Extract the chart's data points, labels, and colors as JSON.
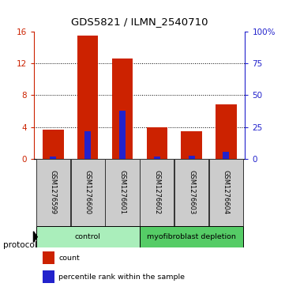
{
  "title": "GDS5821 / ILMN_2540710",
  "samples": [
    "GSM1276599",
    "GSM1276600",
    "GSM1276601",
    "GSM1276602",
    "GSM1276603",
    "GSM1276604"
  ],
  "count_values": [
    3.7,
    15.5,
    12.6,
    4.0,
    3.5,
    6.8
  ],
  "percentile_values": [
    0.25,
    3.5,
    6.0,
    0.25,
    0.4,
    0.9
  ],
  "ylim_left": [
    0,
    16
  ],
  "ylim_right": [
    0,
    100
  ],
  "yticks_left": [
    0,
    4,
    8,
    12,
    16
  ],
  "yticks_right": [
    0,
    25,
    50,
    75,
    100
  ],
  "yticklabels_right": [
    "0",
    "25",
    "50",
    "75",
    "100%"
  ],
  "bar_color": "#cc2200",
  "percentile_color": "#2222cc",
  "groups": [
    {
      "label": "control",
      "indices": [
        0,
        1,
        2
      ],
      "color": "#aaeebb"
    },
    {
      "label": "myofibroblast depletion",
      "indices": [
        3,
        4,
        5
      ],
      "color": "#55cc66"
    }
  ],
  "protocol_label": "protocol",
  "legend_items": [
    {
      "label": "count",
      "color": "#cc2200"
    },
    {
      "label": "percentile rank within the sample",
      "color": "#2222cc"
    }
  ],
  "grid_yticks": [
    4,
    8,
    12
  ],
  "bar_width": 0.6,
  "perc_bar_width": 0.18,
  "label_area_color": "#cccccc",
  "label_area_border": "#333333"
}
